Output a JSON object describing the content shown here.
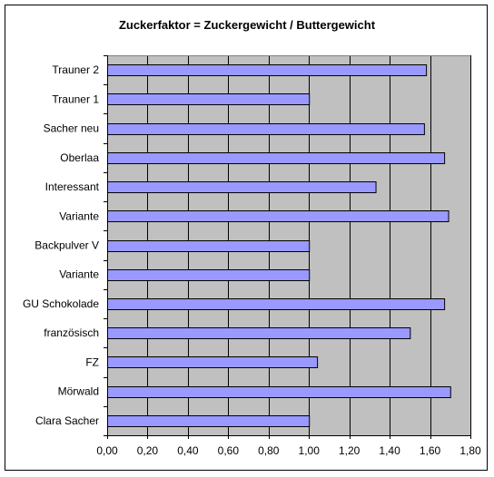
{
  "chart_data": {
    "type": "bar",
    "orientation": "horizontal",
    "title": "Zuckerfaktor = Zuckergewicht / Buttergewicht",
    "categories": [
      "Trauner 2",
      "Trauner 1",
      "Sacher neu",
      "Oberlaa",
      "Interessant",
      "Variante",
      "Backpulver V",
      "Variante",
      "GU Schokolade",
      "französisch",
      "FZ",
      "Mörwald",
      "Clara Sacher"
    ],
    "values": [
      1.58,
      1.0,
      1.57,
      1.67,
      1.33,
      1.69,
      1.0,
      1.0,
      1.67,
      1.5,
      1.04,
      1.7,
      1.0
    ],
    "xlim": [
      0,
      1.8
    ],
    "xticks": [
      "0,00",
      "0,20",
      "0,40",
      "0,60",
      "0,80",
      "1,00",
      "1,20",
      "1,40",
      "1,60",
      "1,80"
    ],
    "grid": true,
    "colors": {
      "bar_fill": "#9999ff",
      "bar_stroke": "#000000",
      "plot_background": "#c0c0c0",
      "grid": "#000000"
    }
  }
}
